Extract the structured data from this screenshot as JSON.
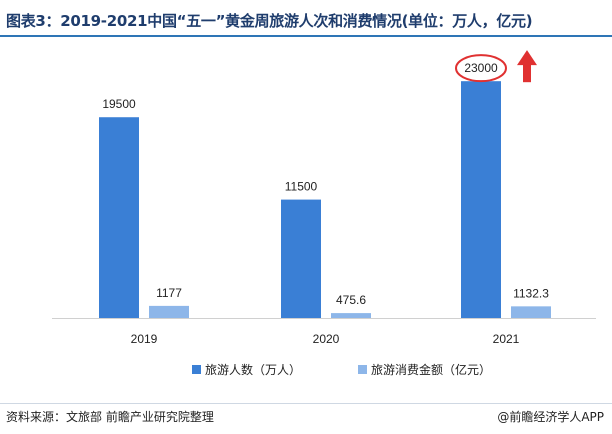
{
  "title": "图表3：2019-2021中国“五一”黄金周旅游人次和消费情况(单位：万人，亿元)",
  "source": "资料来源：文旅部 前瞻产业研究院整理",
  "brand": "@前瞻经济学人APP",
  "colors": {
    "title": "#1f3d6d",
    "series_1": "#3a7fd5",
    "series_2": "#8db6e9",
    "annotation": "#e03131",
    "rule": "#2e75b6"
  },
  "chart_data": {
    "type": "bar",
    "categories": [
      "2019",
      "2020",
      "2021"
    ],
    "series": [
      {
        "name": "旅游人数（万人）",
        "values": [
          19500,
          11500,
          23000
        ],
        "labels": [
          "19500",
          "11500",
          "23000"
        ]
      },
      {
        "name": "旅游消费金额（亿元）",
        "values": [
          1177,
          475.6,
          1132.3
        ],
        "labels": [
          "1177",
          "475.6",
          "1132.3"
        ]
      }
    ],
    "ylim": [
      0,
      27000
    ],
    "grid": false,
    "legend": "bottom",
    "highlight": {
      "category": "2021",
      "series": "旅游人数（万人）",
      "mark": "red-ellipse-and-up-arrow"
    }
  }
}
